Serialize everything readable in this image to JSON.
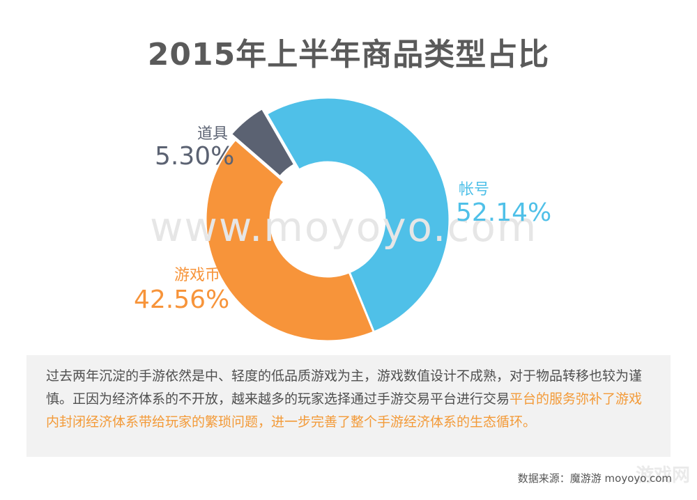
{
  "colors": {
    "account": "#4fc0e8",
    "currency": "#f7943a",
    "items": "#5b6272",
    "title": "#5a5a5a"
  },
  "watermark": "www.moyoyo.com",
  "description": {
    "gray_text": "过去两年沉淀的手游依然是中、轻度的低品质游戏为主，游戏数值设计不成熟，对于物品转移也较为谨慎。正因为经济体系的不开放，越来越多的玩家选择通过手游交易平台进行交易",
    "orange_text": "平台的服务弥补了游戏内封闭经济体系带给玩家的繁琐问题，进一步完善了整个手游经济体系的生态循环。"
  },
  "source": "数据来源：魔游游 moyoyo.com",
  "site_mark": "游戏网",
  "chart_data": {
    "type": "pie",
    "title": "2015年上半年商品类型占比",
    "donut": true,
    "categories": [
      "帐号",
      "游戏币",
      "道具"
    ],
    "values": [
      52.14,
      42.56,
      5.3
    ],
    "labels": [
      "52.14%",
      "42.56%",
      "5.30%"
    ],
    "colors": [
      "#4fc0e8",
      "#f7943a",
      "#5b6272"
    ]
  }
}
